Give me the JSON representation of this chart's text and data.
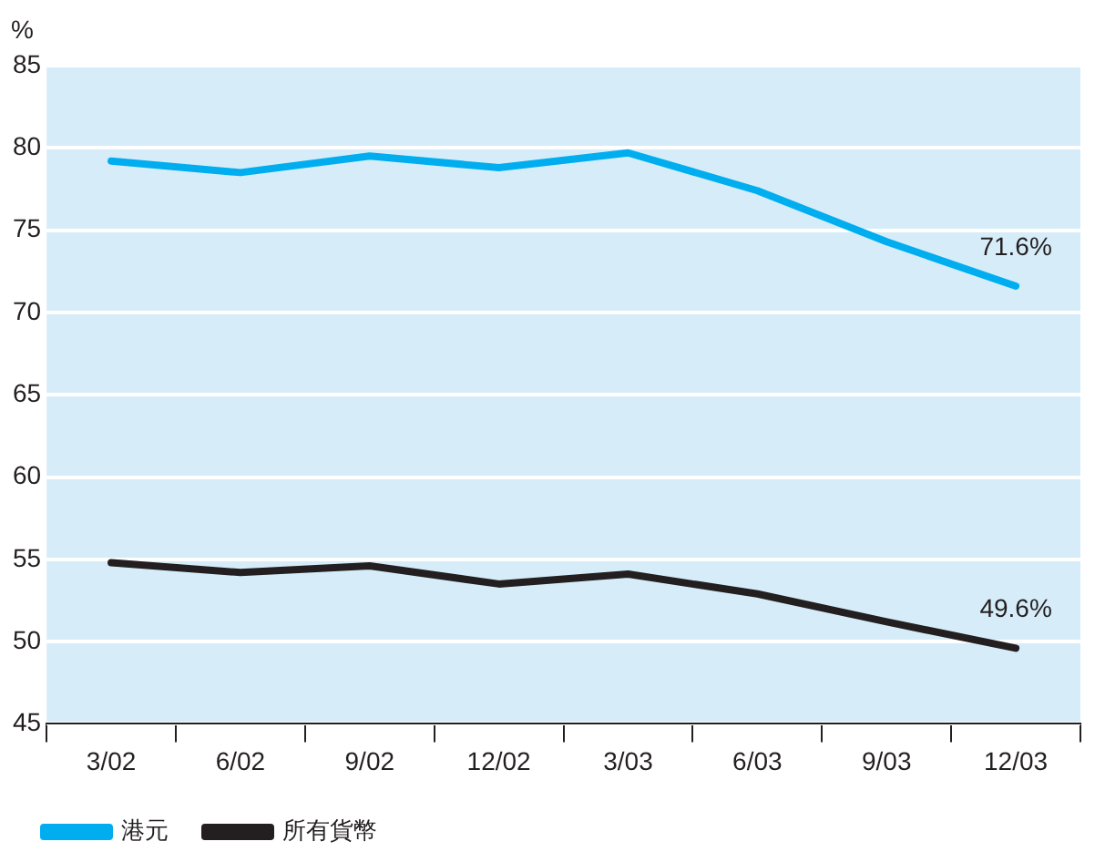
{
  "chart_data": {
    "type": "line",
    "ylabel": "%",
    "categories": [
      "3/02",
      "6/02",
      "9/02",
      "12/02",
      "3/03",
      "6/03",
      "9/03",
      "12/03"
    ],
    "series": [
      {
        "name": "港元",
        "color": "#00aeef",
        "values": [
          79.2,
          78.5,
          79.5,
          78.8,
          79.7,
          77.4,
          74.3,
          71.6
        ],
        "value_labels": [
          null,
          null,
          null,
          null,
          null,
          null,
          null,
          "71.6%"
        ]
      },
      {
        "name": "所有貨幣",
        "color": "#231f20",
        "values": [
          54.8,
          54.2,
          54.6,
          53.5,
          54.1,
          52.9,
          51.2,
          49.6
        ],
        "value_labels": [
          null,
          null,
          null,
          null,
          null,
          null,
          null,
          "49.6%"
        ]
      }
    ],
    "ylim": [
      45,
      85
    ],
    "yticks": [
      45,
      50,
      55,
      60,
      65,
      70,
      75,
      80,
      85
    ],
    "grid": "y",
    "legend": "bottom",
    "marker": "none",
    "line_style": "solid"
  }
}
